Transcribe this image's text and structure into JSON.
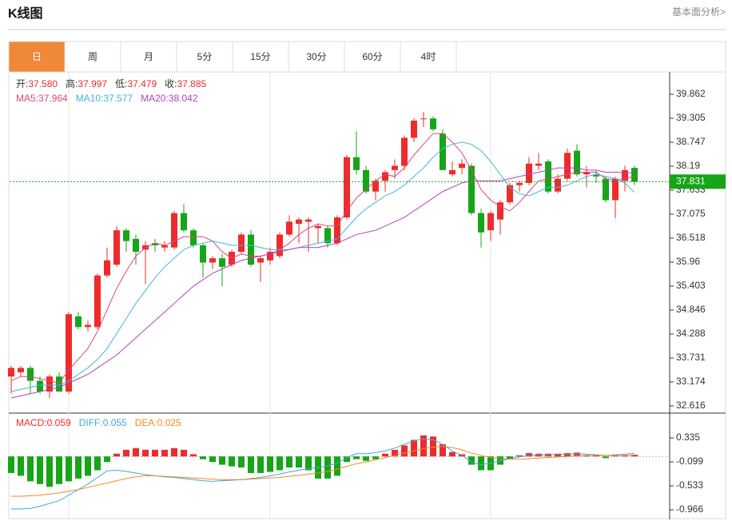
{
  "header": {
    "title": "K线图",
    "link": "基本面分析>"
  },
  "tabs": [
    "日",
    "周",
    "月",
    "5分",
    "15分",
    "30分",
    "60分",
    "4时"
  ],
  "active_tab": 0,
  "info": [
    {
      "label": "开:",
      "value": "37.580"
    },
    {
      "label": "高:",
      "value": "37.997"
    },
    {
      "label": "低:",
      "value": "37.479"
    },
    {
      "label": "收:",
      "value": "37.885"
    }
  ],
  "chart_data": [
    {
      "type": "candlestick",
      "ylim": [
        32.486,
        40.345
      ],
      "yticks": [
        39.862,
        39.305,
        38.747,
        38.19,
        37.633,
        37.075,
        36.518,
        35.96,
        35.403,
        34.846,
        34.288,
        33.731,
        33.174,
        32.616
      ],
      "up_color": "#ee2b2b",
      "down_color": "#16a516",
      "last_price": 37.831,
      "legend": [
        {
          "label": "MA5:",
          "value": "37.964",
          "color": "#e0447f"
        },
        {
          "label": "MA10:",
          "value": "37.577",
          "color": "#3fb8d8"
        },
        {
          "label": "MA20:",
          "value": "38.042",
          "color": "#b044c0"
        }
      ],
      "ohlc": [
        [
          33.3,
          33.55,
          32.9,
          33.5
        ],
        [
          33.4,
          33.55,
          33.3,
          33.5
        ],
        [
          33.5,
          33.55,
          32.9,
          33.2
        ],
        [
          33.2,
          33.3,
          32.9,
          32.95
        ],
        [
          32.95,
          33.35,
          32.8,
          33.3
        ],
        [
          33.3,
          33.4,
          32.95,
          32.95
        ],
        [
          32.95,
          34.8,
          32.9,
          34.75
        ],
        [
          34.7,
          34.8,
          34.4,
          34.45
        ],
        [
          34.45,
          34.6,
          34.35,
          34.5
        ],
        [
          34.45,
          35.7,
          34.4,
          35.65
        ],
        [
          35.65,
          36.3,
          35.6,
          36.0
        ],
        [
          35.9,
          36.8,
          35.85,
          36.7
        ],
        [
          36.7,
          36.75,
          36.2,
          36.45
        ],
        [
          36.5,
          36.6,
          35.9,
          36.2
        ],
        [
          36.25,
          36.45,
          35.45,
          36.35
        ],
        [
          36.4,
          36.5,
          36.2,
          36.35
        ],
        [
          36.3,
          36.45,
          36.2,
          36.35
        ],
        [
          36.3,
          37.15,
          36.25,
          37.1
        ],
        [
          37.1,
          37.3,
          36.65,
          36.7
        ],
        [
          36.7,
          36.75,
          36.3,
          36.35
        ],
        [
          36.35,
          36.4,
          35.6,
          35.95
        ],
        [
          35.95,
          36.1,
          35.8,
          36.05
        ],
        [
          36.05,
          36.15,
          35.4,
          35.85
        ],
        [
          35.9,
          36.25,
          35.85,
          36.2
        ],
        [
          36.2,
          36.65,
          36.15,
          36.6
        ],
        [
          36.6,
          36.7,
          35.85,
          35.9
        ],
        [
          35.95,
          36.1,
          35.5,
          36.05
        ],
        [
          36.0,
          36.3,
          35.9,
          36.2
        ],
        [
          36.1,
          36.65,
          36.05,
          36.6
        ],
        [
          36.6,
          37.05,
          36.55,
          36.9
        ],
        [
          36.85,
          37.0,
          36.4,
          36.95
        ],
        [
          36.9,
          37.0,
          36.2,
          36.95
        ],
        [
          36.75,
          36.85,
          36.4,
          36.8
        ],
        [
          36.75,
          36.8,
          36.3,
          36.4
        ],
        [
          36.4,
          37.05,
          36.35,
          37.0
        ],
        [
          37.0,
          38.45,
          36.95,
          38.4
        ],
        [
          38.4,
          39.0,
          38.0,
          38.1
        ],
        [
          38.1,
          38.2,
          37.55,
          37.6
        ],
        [
          37.6,
          37.9,
          37.4,
          37.85
        ],
        [
          37.85,
          38.1,
          37.6,
          38.05
        ],
        [
          38.1,
          38.35,
          37.9,
          38.2
        ],
        [
          38.2,
          38.9,
          38.1,
          38.85
        ],
        [
          38.85,
          39.3,
          38.75,
          39.25
        ],
        [
          39.3,
          39.45,
          39.1,
          39.3
        ],
        [
          39.3,
          39.35,
          39.0,
          39.05
        ],
        [
          38.95,
          39.05,
          38.1,
          38.1
        ],
        [
          38.0,
          38.3,
          37.95,
          38.1
        ],
        [
          38.15,
          38.35,
          38.0,
          38.25
        ],
        [
          38.2,
          38.25,
          37.05,
          37.1
        ],
        [
          37.1,
          37.2,
          36.3,
          36.65
        ],
        [
          36.7,
          37.15,
          36.45,
          37.1
        ],
        [
          36.95,
          37.4,
          36.6,
          37.35
        ],
        [
          37.35,
          37.8,
          37.3,
          37.75
        ],
        [
          37.75,
          37.85,
          37.6,
          37.8
        ],
        [
          37.8,
          38.4,
          37.75,
          38.25
        ],
        [
          38.2,
          38.5,
          38.1,
          38.25
        ],
        [
          38.3,
          38.35,
          37.55,
          37.6
        ],
        [
          37.6,
          38.0,
          37.55,
          37.9
        ],
        [
          37.9,
          38.6,
          37.85,
          38.5
        ],
        [
          38.55,
          38.7,
          37.95,
          38.0
        ],
        [
          38.0,
          38.2,
          37.7,
          38.05
        ],
        [
          38.0,
          38.1,
          37.8,
          37.95
        ],
        [
          37.9,
          37.95,
          37.35,
          37.4
        ],
        [
          37.4,
          37.95,
          36.98,
          37.9
        ],
        [
          37.85,
          38.2,
          37.6,
          38.1
        ],
        [
          38.15,
          38.2,
          37.75,
          37.83
        ]
      ],
      "series": [
        {
          "name": "MA5",
          "color": "#e0447f",
          "values": [
            33.2,
            33.3,
            33.3,
            33.25,
            33.2,
            33.15,
            33.45,
            33.7,
            33.95,
            34.35,
            34.85,
            35.35,
            35.75,
            36.1,
            36.3,
            36.4,
            36.35,
            36.45,
            36.55,
            36.55,
            36.55,
            36.45,
            36.2,
            36.05,
            36.15,
            36.1,
            36.1,
            36.15,
            36.25,
            36.4,
            36.6,
            36.75,
            36.85,
            36.8,
            36.8,
            37.15,
            37.45,
            37.65,
            37.85,
            38.0,
            37.95,
            38.15,
            38.45,
            38.7,
            38.95,
            38.95,
            38.75,
            38.5,
            38.1,
            37.65,
            37.4,
            37.25,
            37.15,
            37.35,
            37.6,
            37.85,
            37.9,
            37.95,
            38.0,
            38.05,
            38.05,
            38.05,
            37.9,
            37.85,
            37.9,
            37.96
          ]
        },
        {
          "name": "MA10",
          "color": "#3fb8d8",
          "values": [
            32.95,
            33.0,
            33.05,
            33.1,
            33.1,
            33.1,
            33.2,
            33.35,
            33.5,
            33.7,
            33.95,
            34.3,
            34.65,
            35.0,
            35.3,
            35.6,
            35.85,
            36.05,
            36.25,
            36.35,
            36.4,
            36.45,
            36.4,
            36.35,
            36.35,
            36.35,
            36.3,
            36.25,
            36.25,
            36.25,
            36.3,
            36.35,
            36.4,
            36.45,
            36.5,
            36.75,
            37.0,
            37.2,
            37.35,
            37.5,
            37.6,
            37.75,
            37.95,
            38.15,
            38.4,
            38.6,
            38.7,
            38.75,
            38.7,
            38.55,
            38.3,
            38.0,
            37.7,
            37.55,
            37.5,
            37.6,
            37.7,
            37.7,
            37.75,
            37.85,
            37.95,
            38.0,
            37.95,
            37.9,
            37.8,
            37.58
          ]
        },
        {
          "name": "MA20",
          "color": "#b044c0",
          "values": [
            32.8,
            32.85,
            32.9,
            32.95,
            33.0,
            33.05,
            33.15,
            33.25,
            33.35,
            33.5,
            33.65,
            33.8,
            34.0,
            34.2,
            34.4,
            34.6,
            34.8,
            35.0,
            35.2,
            35.4,
            35.55,
            35.7,
            35.8,
            35.9,
            36.0,
            36.05,
            36.1,
            36.15,
            36.2,
            36.25,
            36.3,
            36.3,
            36.3,
            36.35,
            36.4,
            36.5,
            36.6,
            36.65,
            36.7,
            36.8,
            36.9,
            37.0,
            37.15,
            37.3,
            37.45,
            37.6,
            37.7,
            37.8,
            37.85,
            37.85,
            37.85,
            37.85,
            37.9,
            37.95,
            38.0,
            38.05,
            38.1,
            38.15,
            38.15,
            38.15,
            38.1,
            38.1,
            38.05,
            38.05,
            38.04,
            38.04
          ]
        }
      ]
    },
    {
      "type": "macd",
      "ylim": [
        -1.139,
        0.769
      ],
      "yticks": [
        0.335,
        -0.099,
        -0.533,
        -0.966
      ],
      "legend": [
        {
          "label": "MACD:",
          "value": "0.059",
          "color": "#ee2b2b"
        },
        {
          "label": "DIFF:",
          "value": "0.055",
          "color": "#3fa8e0"
        },
        {
          "label": "DEA:",
          "value": "0.025",
          "color": "#f08a24"
        }
      ],
      "up_color": "#ee2b2b",
      "down_color": "#16a516",
      "histogram": [
        -0.3,
        -0.35,
        -0.45,
        -0.5,
        -0.55,
        -0.5,
        -0.45,
        -0.4,
        -0.35,
        -0.25,
        -0.1,
        0.05,
        0.12,
        0.15,
        0.12,
        0.12,
        0.12,
        0.15,
        0.12,
        0.04,
        -0.05,
        -0.1,
        -0.15,
        -0.18,
        -0.2,
        -0.3,
        -0.3,
        -0.28,
        -0.25,
        -0.2,
        -0.2,
        -0.25,
        -0.4,
        -0.4,
        -0.35,
        -0.1,
        -0.05,
        -0.08,
        -0.05,
        0.05,
        0.12,
        0.2,
        0.3,
        0.38,
        0.36,
        0.22,
        0.08,
        0.04,
        -0.15,
        -0.25,
        -0.25,
        -0.15,
        -0.05,
        0.02,
        0.06,
        0.05,
        0.05,
        0.05,
        0.06,
        0.07,
        0.02,
        0.02,
        -0.03,
        0.01,
        0.02,
        0.03
      ],
      "series": [
        {
          "name": "DIFF",
          "color": "#3fa8e0",
          "values": [
            -0.95,
            -0.95,
            -0.94,
            -0.9,
            -0.85,
            -0.8,
            -0.7,
            -0.6,
            -0.5,
            -0.38,
            -0.26,
            -0.25,
            -0.27,
            -0.3,
            -0.33,
            -0.35,
            -0.37,
            -0.38,
            -0.4,
            -0.42,
            -0.44,
            -0.45,
            -0.44,
            -0.43,
            -0.42,
            -0.4,
            -0.38,
            -0.35,
            -0.32,
            -0.28,
            -0.25,
            -0.22,
            -0.2,
            -0.17,
            -0.12,
            -0.02,
            0.05,
            0.05,
            0.07,
            0.1,
            0.15,
            0.22,
            0.28,
            0.32,
            0.3,
            0.22,
            0.1,
            0.02,
            -0.1,
            -0.15,
            -0.12,
            -0.08,
            -0.04,
            -0.01,
            0.02,
            0.03,
            0.03,
            0.04,
            0.04,
            0.05,
            0.04,
            0.03,
            0.02,
            0.03,
            0.04,
            0.055
          ]
        },
        {
          "name": "DEA",
          "color": "#f08a24",
          "values": [
            -0.72,
            -0.72,
            -0.71,
            -0.7,
            -0.68,
            -0.66,
            -0.63,
            -0.6,
            -0.56,
            -0.52,
            -0.48,
            -0.44,
            -0.4,
            -0.37,
            -0.35,
            -0.35,
            -0.36,
            -0.37,
            -0.38,
            -0.39,
            -0.4,
            -0.41,
            -0.42,
            -0.42,
            -0.42,
            -0.41,
            -0.4,
            -0.39,
            -0.38,
            -0.36,
            -0.34,
            -0.32,
            -0.3,
            -0.27,
            -0.23,
            -0.18,
            -0.13,
            -0.1,
            -0.06,
            -0.02,
            0.02,
            0.06,
            0.1,
            0.14,
            0.17,
            0.18,
            0.16,
            0.12,
            0.06,
            0.02,
            -0.02,
            -0.04,
            -0.05,
            -0.05,
            -0.04,
            -0.03,
            -0.02,
            -0.01,
            0.0,
            0.01,
            0.02,
            0.02,
            0.02,
            0.02,
            0.02,
            0.025
          ]
        }
      ]
    }
  ]
}
